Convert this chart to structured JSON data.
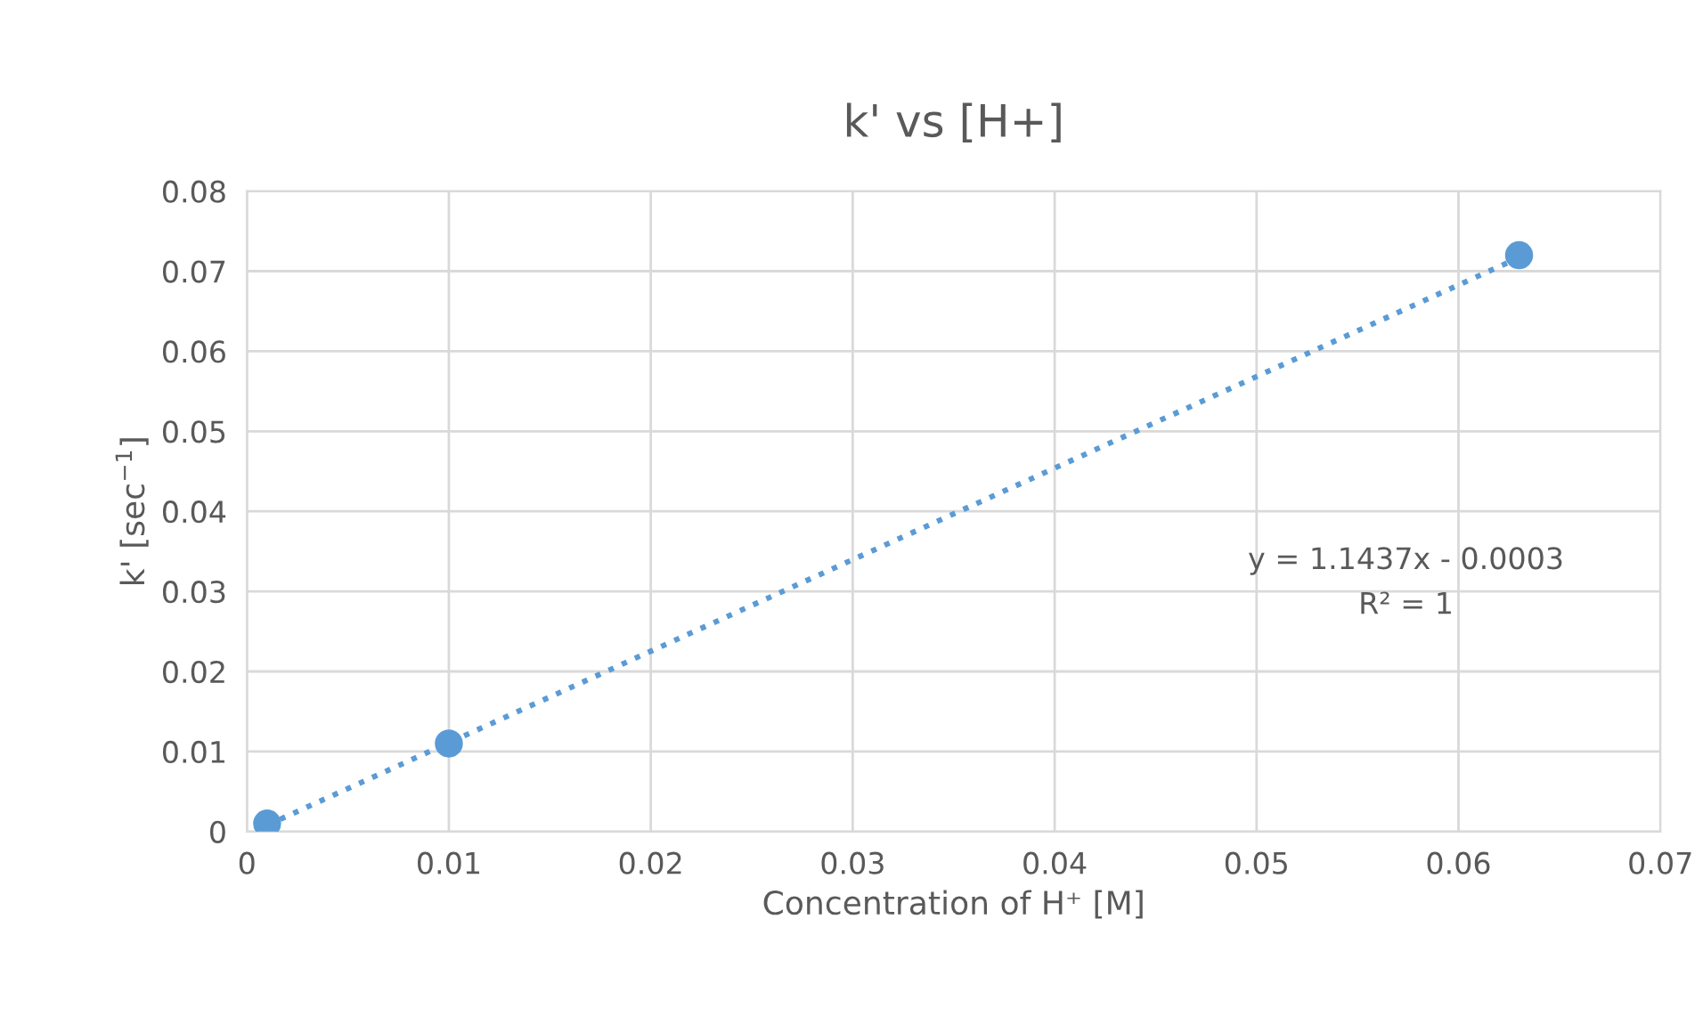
{
  "chart_data": {
    "type": "scatter",
    "title": "k' vs [H+]",
    "xlabel": "Concentration of H⁺ [M]",
    "ylabel": "k' [sec$^{−1}$]",
    "xlim": [
      0,
      0.07
    ],
    "xticks": [
      0,
      0.01,
      0.02,
      0.03,
      0.04,
      0.05,
      0.06,
      0.07
    ],
    "ylim": [
      0,
      0.08
    ],
    "yticks": [
      0,
      0.01,
      0.02,
      0.03,
      0.04,
      0.05,
      0.06,
      0.07,
      0.08
    ],
    "grid": true,
    "series": [
      {
        "color": "#5b9bd5",
        "marker": "circle",
        "x": [
          0.001,
          0.01,
          0.063
        ],
        "values": [
          0.001,
          0.011,
          0.072
        ]
      },
      {
        "type": "line",
        "color": "#5b9bd5",
        "line_style": "dotted",
        "marker": "none",
        "x": [
          0.001,
          0.063
        ],
        "values": [
          0.0008,
          0.0717
        ]
      }
    ],
    "annotations": [
      "y = 1.1437x - 0.0003",
      "R² = 1"
    ]
  }
}
